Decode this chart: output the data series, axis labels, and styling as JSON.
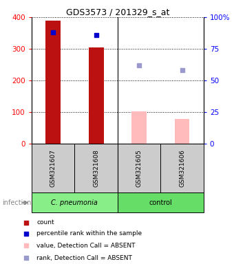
{
  "title": "GDS3573 / 201329_s_at",
  "samples": [
    "GSM321607",
    "GSM321608",
    "GSM321605",
    "GSM321606"
  ],
  "bar_values_red": [
    390,
    305,
    null,
    null
  ],
  "bar_values_pink": [
    null,
    null,
    102,
    78
  ],
  "scatter_blue_dark": [
    352,
    343,
    null,
    null
  ],
  "scatter_blue_light": [
    null,
    null,
    248,
    232
  ],
  "ylim": [
    0,
    400
  ],
  "yticks_left": [
    0,
    100,
    200,
    300,
    400
  ],
  "yticks_right": [
    0,
    25,
    50,
    75,
    100
  ],
  "ytick_labels_right": [
    "0",
    "25",
    "50",
    "75",
    "100%"
  ],
  "bar_color_red": "#bb1111",
  "bar_color_pink": "#ffbbbb",
  "dot_color_blue_dark": "#0000cc",
  "dot_color_blue_light": "#9999cc",
  "group_color_pneumonia": "#88ee88",
  "group_color_control": "#66dd66",
  "sample_box_color": "#cccccc",
  "legend_items": [
    "count",
    "percentile rank within the sample",
    "value, Detection Call = ABSENT",
    "rank, Detection Call = ABSENT"
  ],
  "legend_colors": [
    "#bb1111",
    "#0000cc",
    "#ffbbbb",
    "#9999cc"
  ],
  "bar_width": 0.35
}
